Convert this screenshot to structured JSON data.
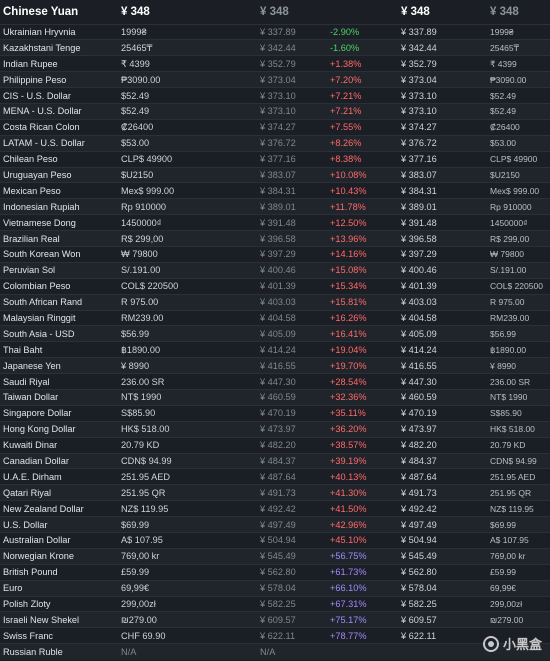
{
  "header": {
    "title": "Chinese Yuan",
    "price_col1": "¥ 348",
    "price_col2": "¥ 348",
    "price_col3": "¥ 348",
    "price_col4": "¥ 348"
  },
  "rows": [
    {
      "name": "Ukrainian Hryvnia",
      "local": "1999₴",
      "cny": "¥ 337.89",
      "diff": "-2.90%",
      "cny2": "¥ 337.89",
      "local2": "1999₴",
      "dir": "neg"
    },
    {
      "name": "Kazakhstani Tenge",
      "local": "25465₸",
      "cny": "¥ 342.44",
      "diff": "-1.60%",
      "cny2": "¥ 342.44",
      "local2": "25465₸",
      "dir": "neg"
    },
    {
      "name": "Indian Rupee",
      "local": "₹ 4399",
      "cny": "¥ 352.79",
      "diff": "+1.38%",
      "cny2": "¥ 352.79",
      "local2": "₹ 4399",
      "dir": "pos"
    },
    {
      "name": "Philippine Peso",
      "local": "₱3090.00",
      "cny": "¥ 373.04",
      "diff": "+7.20%",
      "cny2": "¥ 373.04",
      "local2": "₱3090.00",
      "dir": "pos"
    },
    {
      "name": "CIS - U.S. Dollar",
      "local": "$52.49",
      "cny": "¥ 373.10",
      "diff": "+7.21%",
      "cny2": "¥ 373.10",
      "local2": "$52.49",
      "dir": "pos"
    },
    {
      "name": "MENA - U.S. Dollar",
      "local": "$52.49",
      "cny": "¥ 373.10",
      "diff": "+7.21%",
      "cny2": "¥ 373.10",
      "local2": "$52.49",
      "dir": "pos"
    },
    {
      "name": "Costa Rican Colon",
      "local": "₡26400",
      "cny": "¥ 374.27",
      "diff": "+7.55%",
      "cny2": "¥ 374.27",
      "local2": "₡26400",
      "dir": "pos"
    },
    {
      "name": "LATAM - U.S. Dollar",
      "local": "$53.00",
      "cny": "¥ 376.72",
      "diff": "+8.26%",
      "cny2": "¥ 376.72",
      "local2": "$53.00",
      "dir": "pos"
    },
    {
      "name": "Chilean Peso",
      "local": "CLP$ 49900",
      "cny": "¥ 377.16",
      "diff": "+8.38%",
      "cny2": "¥ 377.16",
      "local2": "CLP$ 49900",
      "dir": "pos"
    },
    {
      "name": "Uruguayan Peso",
      "local": "$U2150",
      "cny": "¥ 383.07",
      "diff": "+10.08%",
      "cny2": "¥ 383.07",
      "local2": "$U2150",
      "dir": "pos"
    },
    {
      "name": "Mexican Peso",
      "local": "Mex$ 999.00",
      "cny": "¥ 384.31",
      "diff": "+10.43%",
      "cny2": "¥ 384.31",
      "local2": "Mex$ 999.00",
      "dir": "pos"
    },
    {
      "name": "Indonesian Rupiah",
      "local": "Rp 910000",
      "cny": "¥ 389.01",
      "diff": "+11.78%",
      "cny2": "¥ 389.01",
      "local2": "Rp 910000",
      "dir": "pos"
    },
    {
      "name": "Vietnamese Dong",
      "local": "1450000₫",
      "cny": "¥ 391.48",
      "diff": "+12.50%",
      "cny2": "¥ 391.48",
      "local2": "1450000₫",
      "dir": "pos"
    },
    {
      "name": "Brazilian Real",
      "local": "R$ 299,00",
      "cny": "¥ 396.58",
      "diff": "+13.96%",
      "cny2": "¥ 396.58",
      "local2": "R$ 299,00",
      "dir": "pos"
    },
    {
      "name": "South Korean Won",
      "local": "₩ 79800",
      "cny": "¥ 397.29",
      "diff": "+14.16%",
      "cny2": "¥ 397.29",
      "local2": "₩ 79800",
      "dir": "pos"
    },
    {
      "name": "Peruvian Sol",
      "local": "S/.191.00",
      "cny": "¥ 400.46",
      "diff": "+15.08%",
      "cny2": "¥ 400.46",
      "local2": "S/.191.00",
      "dir": "pos"
    },
    {
      "name": "Colombian Peso",
      "local": "COL$ 220500",
      "cny": "¥ 401.39",
      "diff": "+15.34%",
      "cny2": "¥ 401.39",
      "local2": "COL$ 220500",
      "dir": "pos"
    },
    {
      "name": "South African Rand",
      "local": "R 975.00",
      "cny": "¥ 403.03",
      "diff": "+15.81%",
      "cny2": "¥ 403.03",
      "local2": "R 975.00",
      "dir": "pos"
    },
    {
      "name": "Malaysian Ringgit",
      "local": "RM239.00",
      "cny": "¥ 404.58",
      "diff": "+16.26%",
      "cny2": "¥ 404.58",
      "local2": "RM239.00",
      "dir": "pos"
    },
    {
      "name": "South Asia - USD",
      "local": "$56.99",
      "cny": "¥ 405.09",
      "diff": "+16.41%",
      "cny2": "¥ 405.09",
      "local2": "$56.99",
      "dir": "pos"
    },
    {
      "name": "Thai Baht",
      "local": "฿1890.00",
      "cny": "¥ 414.24",
      "diff": "+19.04%",
      "cny2": "¥ 414.24",
      "local2": "฿1890.00",
      "dir": "pos"
    },
    {
      "name": "Japanese Yen",
      "local": "¥ 8990",
      "cny": "¥ 416.55",
      "diff": "+19.70%",
      "cny2": "¥ 416.55",
      "local2": "¥ 8990",
      "dir": "pos"
    },
    {
      "name": "Saudi Riyal",
      "local": "236.00 SR",
      "cny": "¥ 447.30",
      "diff": "+28.54%",
      "cny2": "¥ 447.30",
      "local2": "236.00 SR",
      "dir": "pos"
    },
    {
      "name": "Taiwan Dollar",
      "local": "NT$ 1990",
      "cny": "¥ 460.59",
      "diff": "+32.36%",
      "cny2": "¥ 460.59",
      "local2": "NT$ 1990",
      "dir": "pos"
    },
    {
      "name": "Singapore Dollar",
      "local": "S$85.90",
      "cny": "¥ 470.19",
      "diff": "+35.11%",
      "cny2": "¥ 470.19",
      "local2": "S$85.90",
      "dir": "pos"
    },
    {
      "name": "Hong Kong Dollar",
      "local": "HK$ 518.00",
      "cny": "¥ 473.97",
      "diff": "+36.20%",
      "cny2": "¥ 473.97",
      "local2": "HK$ 518.00",
      "dir": "pos"
    },
    {
      "name": "Kuwaiti Dinar",
      "local": "20.79 KD",
      "cny": "¥ 482.20",
      "diff": "+38.57%",
      "cny2": "¥ 482.20",
      "local2": "20.79 KD",
      "dir": "pos"
    },
    {
      "name": "Canadian Dollar",
      "local": "CDN$ 94.99",
      "cny": "¥ 484.37",
      "diff": "+39.19%",
      "cny2": "¥ 484.37",
      "local2": "CDN$ 94.99",
      "dir": "pos"
    },
    {
      "name": "U.A.E. Dirham",
      "local": "251.95 AED",
      "cny": "¥ 487.64",
      "diff": "+40.13%",
      "cny2": "¥ 487.64",
      "local2": "251.95 AED",
      "dir": "pos"
    },
    {
      "name": "Qatari Riyal",
      "local": "251.95 QR",
      "cny": "¥ 491.73",
      "diff": "+41.30%",
      "cny2": "¥ 491.73",
      "local2": "251.95 QR",
      "dir": "pos"
    },
    {
      "name": "New Zealand Dollar",
      "local": "NZ$ 119.95",
      "cny": "¥ 492.42",
      "diff": "+41.50%",
      "cny2": "¥ 492.42",
      "local2": "NZ$ 119.95",
      "dir": "pos"
    },
    {
      "name": "U.S. Dollar",
      "local": "$69.99",
      "cny": "¥ 497.49",
      "diff": "+42.96%",
      "cny2": "¥ 497.49",
      "local2": "$69.99",
      "dir": "pos"
    },
    {
      "name": "Australian Dollar",
      "local": "A$ 107.95",
      "cny": "¥ 504.94",
      "diff": "+45.10%",
      "cny2": "¥ 504.94",
      "local2": "A$ 107.95",
      "dir": "pos"
    },
    {
      "name": "Norwegian Krone",
      "local": "769,00 kr",
      "cny": "¥ 545.49",
      "diff": "+56.75%",
      "cny2": "¥ 545.49",
      "local2": "769,00 kr",
      "dir": "hi"
    },
    {
      "name": "British Pound",
      "local": "£59.99",
      "cny": "¥ 562.80",
      "diff": "+61.73%",
      "cny2": "¥ 562.80",
      "local2": "£59.99",
      "dir": "hi"
    },
    {
      "name": "Euro",
      "local": "69,99€",
      "cny": "¥ 578.04",
      "diff": "+66.10%",
      "cny2": "¥ 578.04",
      "local2": "69,99€",
      "dir": "hi"
    },
    {
      "name": "Polish Zloty",
      "local": "299,00zł",
      "cny": "¥ 582.25",
      "diff": "+67.31%",
      "cny2": "¥ 582.25",
      "local2": "299,00zł",
      "dir": "hi"
    },
    {
      "name": "Israeli New Shekel",
      "local": "₪279.00",
      "cny": "¥ 609.57",
      "diff": "+75.17%",
      "cny2": "¥ 609.57",
      "local2": "₪279.00",
      "dir": "hi"
    },
    {
      "name": "Swiss Franc",
      "local": "CHF 69.90",
      "cny": "¥ 622.11",
      "diff": "+78.77%",
      "cny2": "¥ 622.11",
      "local2": "",
      "dir": "hi"
    },
    {
      "name": "Russian Ruble",
      "local": "N/A",
      "cny": "N/A",
      "diff": "",
      "cny2": "",
      "local2": "",
      "dir": "na"
    }
  ],
  "watermark": {
    "text": "小黑盒",
    "icon": "xiaoheihe-logo-icon"
  }
}
